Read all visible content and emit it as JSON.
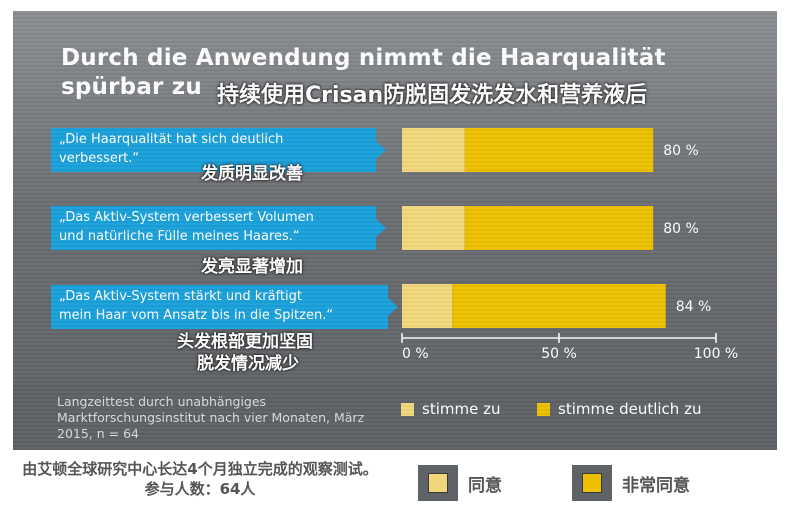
{
  "title_line1": "Durch die Anwendung nimmt die Haarqualität",
  "title_line2": "spürbar zu",
  "title_cn": "持续使用Crisan防脱固发洗发水和营养液后",
  "colors": {
    "stimme_zu": "#f2d77a",
    "stimme_deutlich_zu": "#ecc000",
    "statement_box": "#1aa0da"
  },
  "chart_data": {
    "type": "bar",
    "orientation": "horizontal",
    "stacked": true,
    "categories": [
      "„Die Haarqualität hat sich deutlich verbessert.“",
      "„Das Aktiv-System verbessert Volumen und natürliche Fülle meines Haares.“",
      "„Das Aktiv-System stärkt und kräftigt mein Haar vom Ansatz bis in die Spitzen.“"
    ],
    "category_lines": [
      [
        "„Die Haarqualität hat sich deutlich",
        "verbessert.“"
      ],
      [
        "„Das Aktiv-System verbessert Volumen",
        "und natürliche Fülle meines Haares.“"
      ],
      [
        "„Das Aktiv-System stärkt und kräftigt",
        "mein Haar vom Ansatz bis in die Spitzen.“"
      ]
    ],
    "category_notes_cn": [
      [
        "发质明显改善"
      ],
      [
        "发亮显著增加"
      ],
      [
        "头发根部更加坚固",
        "脱发情况减少"
      ]
    ],
    "series": [
      {
        "name": "stimme zu",
        "values": [
          20,
          20,
          16
        ]
      },
      {
        "name": "stimme deutlich zu",
        "values": [
          60,
          60,
          68
        ]
      }
    ],
    "total_labels": [
      "80 %",
      "80 %",
      "84 %"
    ],
    "xlim": [
      0,
      100
    ],
    "x_ticks": [
      "0 %",
      "50 %",
      "100 %"
    ],
    "legend": {
      "position": "bottom-right",
      "entries": [
        "stimme zu",
        "stimme deutlich zu"
      ]
    }
  },
  "source_note": "Langzeittest durch unabhängiges Marktforschungsinstitut nach vier Monaten, März 2015, n = 64",
  "cn_source_note": "由艾顿全球研究中心长达4个月独立完成的观察测试。参与人数：64人",
  "cn_legend": {
    "agree": "同意",
    "strongly_agree": "非常同意"
  }
}
